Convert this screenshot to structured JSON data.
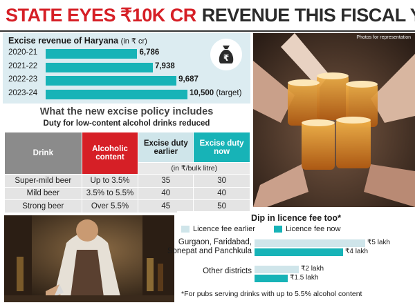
{
  "headline": {
    "part_red": "STATE EYES ₹10K CR",
    "part_dark": "REVENUE THIS FISCAL YR"
  },
  "photo": {
    "credit": "Photos for representation"
  },
  "chart_data": [
    {
      "type": "bar",
      "orientation": "horizontal",
      "title": "Excise revenue of Haryana",
      "unit": "(in ₹ cr)",
      "categories": [
        "2020-21",
        "2021-22",
        "2022-23",
        "2023-24"
      ],
      "values": [
        6786,
        7938,
        9687,
        10500
      ],
      "value_labels": [
        "6,786",
        "7,938",
        "9,687",
        "10,500"
      ],
      "annotations": [
        "",
        "",
        "",
        "(target)"
      ],
      "colors": {
        "bar": "#17b3b7",
        "panel": "#dcecf1"
      }
    },
    {
      "type": "table",
      "title": "What the new excise policy includes",
      "subtitle": "Duty for low-content alcohol drinks reduced",
      "headers": [
        "Drink",
        "Alcoholic content",
        "Excise duty earlier",
        "Excise duty now"
      ],
      "unit_row": "(in ₹/bulk litre)",
      "rows": [
        [
          "Super-mild beer",
          "Up to 3.5%",
          "35",
          "30"
        ],
        [
          "Mild beer",
          "3.5% to 5.5%",
          "40",
          "40"
        ],
        [
          "Strong beer",
          "Over 5.5%",
          "45",
          "50"
        ]
      ],
      "colors": {
        "drink": "#8b8b8b",
        "alcohol": "#d61f26",
        "earlier": "#cfe5ea",
        "now": "#17b3b7"
      }
    },
    {
      "type": "bar",
      "orientation": "horizontal",
      "title": "Dip in licence fee too*",
      "categories": [
        "Gurgaon, Faridabad, Sonepat and Panchkula",
        "Other districts"
      ],
      "category_lines": [
        [
          "Gurgaon, Faridabad,",
          "Sonepat and Panchkula"
        ],
        [
          "Other districts"
        ]
      ],
      "series": [
        {
          "name": "Licence fee earlier",
          "values": [
            5,
            2
          ],
          "value_labels": [
            "₹5 lakh",
            "₹2 lakh"
          ],
          "color": "#cfe5ea"
        },
        {
          "name": "Licence fee now",
          "values": [
            4,
            1.5
          ],
          "value_labels": [
            "₹4 lakh",
            "₹1.5 lakh"
          ],
          "color": "#17b3b7"
        }
      ],
      "footnote": "*For pubs serving drinks with up to 5.5% alcohol content"
    }
  ]
}
